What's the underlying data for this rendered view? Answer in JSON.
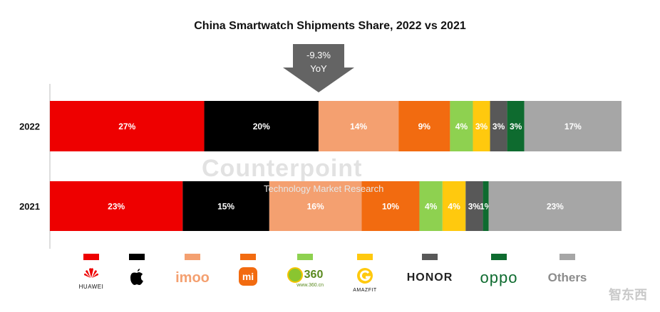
{
  "chart_data": {
    "type": "bar",
    "stacked": true,
    "orientation": "horizontal",
    "title": "China Smartwatch Shipments Share, 2022 vs 2021",
    "categories": [
      "2022",
      "2021"
    ],
    "series": [
      {
        "name": "HUAWEI",
        "color": "#ee0000",
        "values": [
          27,
          23
        ],
        "labels": [
          "27%",
          "23%"
        ]
      },
      {
        "name": "Apple",
        "color": "#000000",
        "values": [
          20,
          15
        ],
        "labels": [
          "20%",
          "15%"
        ]
      },
      {
        "name": "imoo",
        "color": "#f4a070",
        "values": [
          14,
          16
        ],
        "labels": [
          "14%",
          "16%"
        ]
      },
      {
        "name": "mi",
        "color": "#f26b10",
        "values": [
          9,
          10
        ],
        "labels": [
          "9%",
          "10%"
        ]
      },
      {
        "name": "360",
        "color": "#8ed150",
        "values": [
          4,
          4
        ],
        "labels": [
          "4%",
          "4%"
        ]
      },
      {
        "name": "AMAZFIT",
        "color": "#ffc90e",
        "values": [
          3,
          4
        ],
        "labels": [
          "3%",
          "4%"
        ]
      },
      {
        "name": "HONOR",
        "color": "#585858",
        "values": [
          3,
          3
        ],
        "labels": [
          "3%",
          "3%"
        ]
      },
      {
        "name": "oppo",
        "color": "#0e6b2f",
        "values": [
          3,
          1
        ],
        "labels": [
          "3%",
          "1%"
        ]
      },
      {
        "name": "Others",
        "color": "#a6a6a6",
        "values": [
          17,
          23
        ],
        "labels": [
          "17%",
          "23%"
        ]
      }
    ],
    "annotation": {
      "line1": "-9.3%",
      "line2": "YoY"
    },
    "xlim": [
      0,
      100
    ],
    "grid": false,
    "legend_position": "bottom"
  },
  "legend": [
    {
      "key": "huawei",
      "text": "HUAWEI",
      "color": "#ee0000"
    },
    {
      "key": "apple",
      "text": "",
      "color": "#000000"
    },
    {
      "key": "imoo",
      "text": "imoo",
      "color": "#f4a070"
    },
    {
      "key": "mi",
      "text": "mi",
      "color": "#f26b10"
    },
    {
      "key": "360",
      "text": "360",
      "sub": "www.360.cn",
      "color": "#5a8a1e"
    },
    {
      "key": "amazfit",
      "text": "AMAZFIT",
      "color": "#ffc90e"
    },
    {
      "key": "honor",
      "text": "HONOR",
      "color": "#585858"
    },
    {
      "key": "oppo",
      "text": "oppo",
      "color": "#0e6b2f"
    },
    {
      "key": "others",
      "text": "Others",
      "color": "#a6a6a6"
    }
  ],
  "watermark": {
    "text": "Counterpoint",
    "subtitle": "Technology Market Research"
  },
  "site_mark": "智东西"
}
